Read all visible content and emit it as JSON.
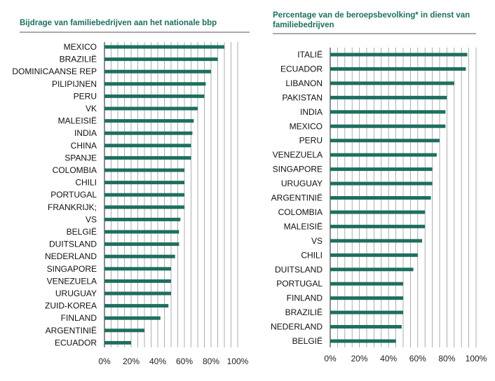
{
  "chart_data": [
    {
      "type": "bar",
      "orientation": "horizontal",
      "title": "Bijdrage van familiebedrijven aan het nationale bbp",
      "categories": [
        "MEXICO",
        "BRAZILIË",
        "DOMINICAANSE REP",
        "PILIPIJNEN",
        "PERU",
        "VK",
        "MALEISIË",
        "INDIA",
        "CHINA",
        "SPANJE",
        "COLOMBIA",
        "CHILI",
        "PORTUGAL",
        "FRANKRIJK;",
        "VS",
        "BELGIË",
        "DUITSLAND",
        "NEDERLAND",
        "SINGAPORE",
        "VENEZUELA",
        "URUGUAY",
        "ZUID-KOREA",
        "FINLAND",
        "ARGENTINIË",
        "ECUADOR"
      ],
      "values": [
        90,
        85,
        80,
        76,
        75,
        70,
        67,
        66,
        65,
        65,
        60,
        60,
        60,
        60,
        57,
        56,
        56,
        53,
        50,
        50,
        50,
        48,
        42,
        30,
        20
      ],
      "xlim": [
        0,
        100
      ],
      "xticks": [
        "0%",
        "20%",
        "40%",
        "60%",
        "80%",
        "100%"
      ],
      "grid": true,
      "color": "#1d6f5f"
    },
    {
      "type": "bar",
      "orientation": "horizontal",
      "title": "Percentage van de beroepsbevolking* in dienst van familiebedrijven",
      "categories": [
        "ITALIË",
        "ECUADOR",
        "LIBANON",
        "PAKISTAN",
        "INDIA",
        "MEXICO",
        "PERU",
        "VENEZUELA",
        "SINGAPORE",
        "URUGUAY",
        "ARGENTINIË",
        "COLOMBIA",
        "MALEISIË",
        "VS",
        "CHILI",
        "DUITSLAND",
        "PORTUGAL",
        "FINLAND",
        "BRAZILIË",
        "NEDERLAND",
        "BELGIË"
      ],
      "values": [
        94,
        93,
        85,
        80,
        79,
        79,
        75,
        73,
        70,
        70,
        69,
        65,
        65,
        63,
        60,
        57,
        50,
        50,
        50,
        49,
        45
      ],
      "xlim": [
        0,
        100
      ],
      "xticks": [
        "0%",
        "20%",
        "40%",
        "60%",
        "80%",
        "100%"
      ],
      "grid": true,
      "color": "#1d6f5f"
    }
  ]
}
